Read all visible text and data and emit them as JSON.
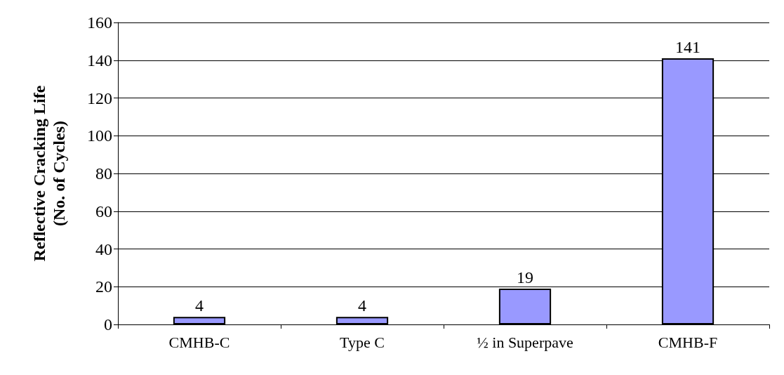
{
  "chart_data": {
    "type": "bar",
    "ylabel": "Reflective Cracking Life\n(No. of Cycles)",
    "categories": [
      "CMHB-C",
      "Type C",
      "½ in Superpave",
      "CMHB-F"
    ],
    "values": [
      4,
      4,
      19,
      141
    ],
    "color": "#9999ff",
    "ylim": [
      0,
      160
    ],
    "yticks": [
      0,
      20,
      40,
      60,
      80,
      100,
      120,
      140,
      160
    ],
    "grid": "y",
    "data_labels": true
  }
}
